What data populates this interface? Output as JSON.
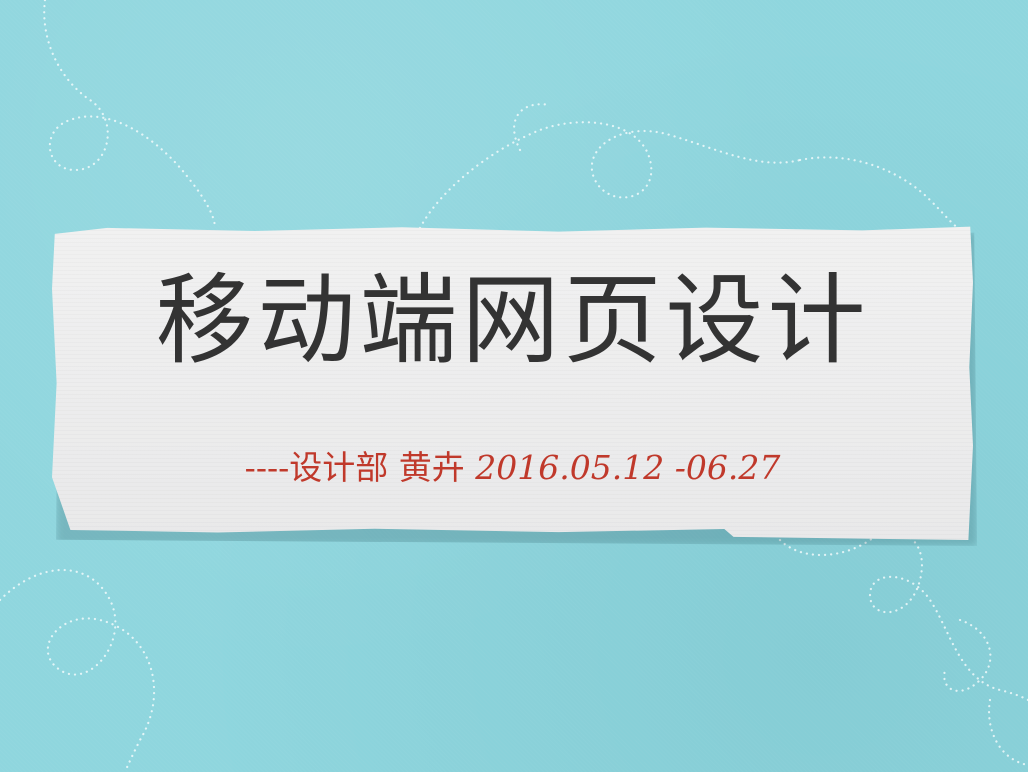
{
  "slide": {
    "title": "移动端网页设计",
    "subtitle_prefix": "----设计部 黄卉 ",
    "subtitle_date": "2016.05.12 -06.27"
  },
  "colors": {
    "background": "#8fd6de",
    "card": "#eeeeef",
    "title_text": "#333333",
    "subtitle_text": "#c0392b",
    "doodle_stroke": "#ffffff"
  },
  "decorations": {
    "doodle_icon": "dotted-swirl-icon"
  }
}
